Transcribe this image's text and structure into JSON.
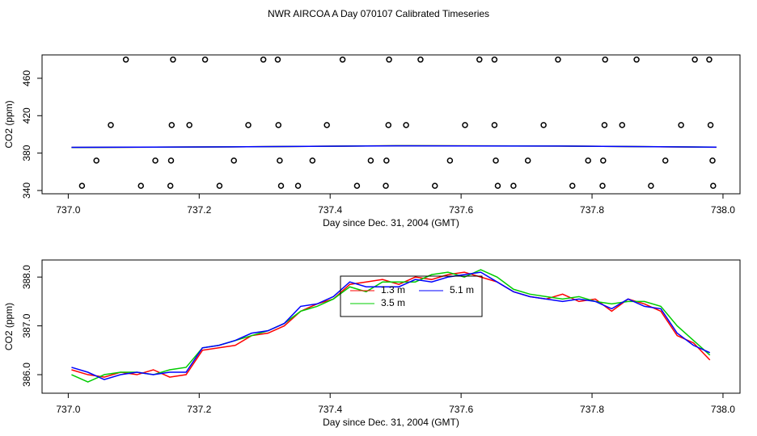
{
  "title": "NWR AIRCOA A  Day 070107  Calibrated Timeseries",
  "chart_data": [
    {
      "type": "scatter",
      "xlabel": "Day since Dec. 31, 2004 (GMT)",
      "ylabel": "CO2 (ppm)",
      "xlim": [
        736.96,
        738.026
      ],
      "ylim": [
        336.5,
        485
      ],
      "xticks": [
        {
          "value": 737,
          "label": "737.0"
        },
        737.2,
        737.4,
        737.6,
        737.8,
        {
          "value": 738,
          "label": "738.0"
        }
      ],
      "yticks": [
        340,
        380,
        420,
        460
      ],
      "series": [
        {
          "style": "points",
          "color": "#000000",
          "x": [
            737.088,
            737.16,
            737.209,
            737.298,
            737.32,
            737.419,
            737.49,
            737.538,
            737.628,
            737.651,
            737.748,
            737.82,
            737.868,
            737.957,
            737.979,
            737.065,
            737.158,
            737.185,
            737.275,
            737.321,
            737.395,
            737.489,
            737.516,
            737.606,
            737.651,
            737.726,
            737.819,
            737.846,
            737.936,
            737.981,
            737.043,
            737.133,
            737.157,
            737.253,
            737.323,
            737.373,
            737.462,
            737.486,
            737.583,
            737.653,
            737.702,
            737.794,
            737.817,
            737.912,
            737.984,
            737.021,
            737.111,
            737.156,
            737.231,
            737.325,
            737.351,
            737.441,
            737.485,
            737.56,
            737.656,
            737.68,
            737.77,
            737.816,
            737.89,
            737.985
          ],
          "values": [
            480,
            480,
            480,
            480,
            480,
            480,
            480,
            480,
            480,
            480,
            480,
            480,
            480,
            480,
            480,
            410,
            410,
            410,
            410,
            410,
            410,
            410,
            410,
            410,
            410,
            410,
            410,
            410,
            410,
            410,
            372,
            372,
            372,
            372,
            372,
            372,
            372,
            372,
            372,
            372,
            372,
            372,
            372,
            372,
            372,
            345,
            345,
            345,
            345,
            345,
            345,
            345,
            345,
            345,
            345,
            345,
            345,
            345,
            345,
            345
          ]
        },
        {
          "style": "line",
          "color": "#ff0000",
          "x": [
            737.005,
            737.25,
            737.5,
            737.75,
            737.99
          ],
          "values": [
            386.0,
            386.7,
            387.9,
            387.6,
            386.3
          ]
        },
        {
          "style": "line",
          "color": "#00cc00",
          "x": [
            737.005,
            737.25,
            737.5,
            737.75,
            737.99
          ],
          "values": [
            386.0,
            386.7,
            387.9,
            387.6,
            386.4
          ]
        },
        {
          "style": "line",
          "color": "#0000ff",
          "x": [
            737.005,
            737.25,
            737.5,
            737.75,
            737.99
          ],
          "values": [
            386.1,
            386.7,
            387.8,
            387.5,
            386.4
          ]
        }
      ]
    },
    {
      "type": "line",
      "xlabel": "Day since Dec. 31, 2004 (GMT)",
      "ylabel": "CO2 (ppm)",
      "xlim": [
        736.96,
        738.026
      ],
      "ylim": [
        385.62,
        388.35
      ],
      "xticks": [
        {
          "value": 737,
          "label": "737.0"
        },
        737.2,
        737.4,
        737.6,
        737.8,
        {
          "value": 738,
          "label": "738.0"
        }
      ],
      "yticks": [
        {
          "value": 386,
          "label": "386.0"
        },
        {
          "value": 387,
          "label": "387.0"
        },
        {
          "value": 388,
          "label": "388.0"
        }
      ],
      "legend": "top-center",
      "x": [
        737.005,
        737.03,
        737.055,
        737.08,
        737.105,
        737.13,
        737.155,
        737.18,
        737.205,
        737.23,
        737.255,
        737.28,
        737.305,
        737.33,
        737.355,
        737.38,
        737.405,
        737.43,
        737.455,
        737.48,
        737.505,
        737.53,
        737.555,
        737.58,
        737.605,
        737.63,
        737.655,
        737.68,
        737.705,
        737.73,
        737.755,
        737.78,
        737.805,
        737.83,
        737.855,
        737.88,
        737.905,
        737.93,
        737.955,
        737.98
      ],
      "series": [
        {
          "name": "1.3 m",
          "color": "#ff0000",
          "values": [
            386.1,
            386.0,
            385.95,
            386.05,
            386.0,
            386.1,
            385.95,
            386.0,
            386.5,
            386.55,
            386.6,
            386.8,
            386.85,
            387.0,
            387.3,
            387.45,
            387.55,
            387.85,
            387.9,
            387.95,
            387.85,
            388.0,
            387.95,
            388.05,
            388.1,
            388.0,
            387.9,
            387.7,
            387.6,
            387.55,
            387.65,
            387.5,
            387.55,
            387.3,
            387.55,
            387.45,
            387.3,
            386.8,
            386.65,
            386.3
          ]
        },
        {
          "name": "3.5 m",
          "color": "#00cc00",
          "values": [
            386.0,
            385.85,
            386.0,
            386.05,
            386.05,
            386.0,
            386.1,
            386.15,
            386.55,
            386.6,
            386.7,
            386.8,
            386.9,
            387.05,
            387.3,
            387.4,
            387.55,
            387.8,
            387.7,
            387.9,
            387.9,
            387.9,
            388.05,
            388.1,
            388.0,
            388.15,
            388.0,
            387.75,
            387.65,
            387.6,
            387.55,
            387.6,
            387.5,
            387.45,
            387.5,
            387.5,
            387.4,
            387.0,
            386.7,
            386.4
          ]
        },
        {
          "name": "5.1 m",
          "color": "#0000ff",
          "values": [
            386.15,
            386.05,
            385.9,
            386.0,
            386.05,
            386.0,
            386.05,
            386.05,
            386.55,
            386.6,
            386.7,
            386.85,
            386.9,
            387.05,
            387.4,
            387.45,
            387.6,
            387.9,
            387.8,
            387.8,
            387.8,
            387.95,
            387.9,
            388.0,
            388.05,
            388.1,
            387.9,
            387.7,
            387.6,
            387.55,
            387.5,
            387.55,
            387.5,
            387.35,
            387.55,
            387.4,
            387.35,
            386.85,
            386.6,
            386.45
          ]
        }
      ]
    }
  ]
}
